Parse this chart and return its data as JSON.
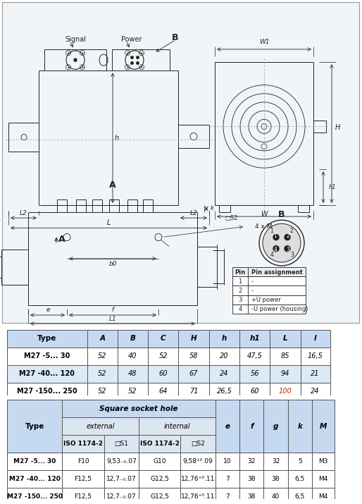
{
  "table1_header_bg": "#c5d9f1",
  "table2_header_bg": "#c5d9f1",
  "table2_subheader_bg": "#dce6f1",
  "table1_cols": [
    "Type",
    "A",
    "B",
    "C",
    "H",
    "h",
    "h1",
    "L",
    "l"
  ],
  "table1_rows": [
    [
      "M27 -5... 30",
      "52",
      "40",
      "52",
      "58",
      "20",
      "47,5",
      "85",
      "16,5"
    ],
    [
      "M27 -40... 120",
      "52",
      "48",
      "60",
      "67",
      "24",
      "56",
      "94",
      "21"
    ],
    [
      "M27 -150... 250",
      "52",
      "52",
      "64",
      "71",
      "26,5",
      "60",
      "100",
      "24"
    ]
  ],
  "table2_rows": [
    [
      "M27 -5... 30",
      "F10",
      "9,53-0.07",
      "G10",
      "9,58+0.09",
      "10",
      "32",
      "32",
      "5",
      "M3"
    ],
    [
      "M27 -40... 120",
      "F12,5",
      "12,7-0.07",
      "G12,5",
      "12,76+0.11",
      "7",
      "38",
      "38",
      "6,5",
      "M4"
    ],
    [
      "M27 -150... 250",
      "F12,5",
      "12,7-0.07",
      "G12,5",
      "12,76+0.11",
      "7",
      "38",
      "40",
      "6,5",
      "M4"
    ]
  ],
  "pin_rows": [
    [
      "1",
      "-"
    ],
    [
      "2",
      "-"
    ],
    [
      "3",
      "+U power"
    ],
    [
      "4",
      "-U power (housing)"
    ]
  ],
  "lc": "#222222",
  "bg": "#f0f4f8"
}
